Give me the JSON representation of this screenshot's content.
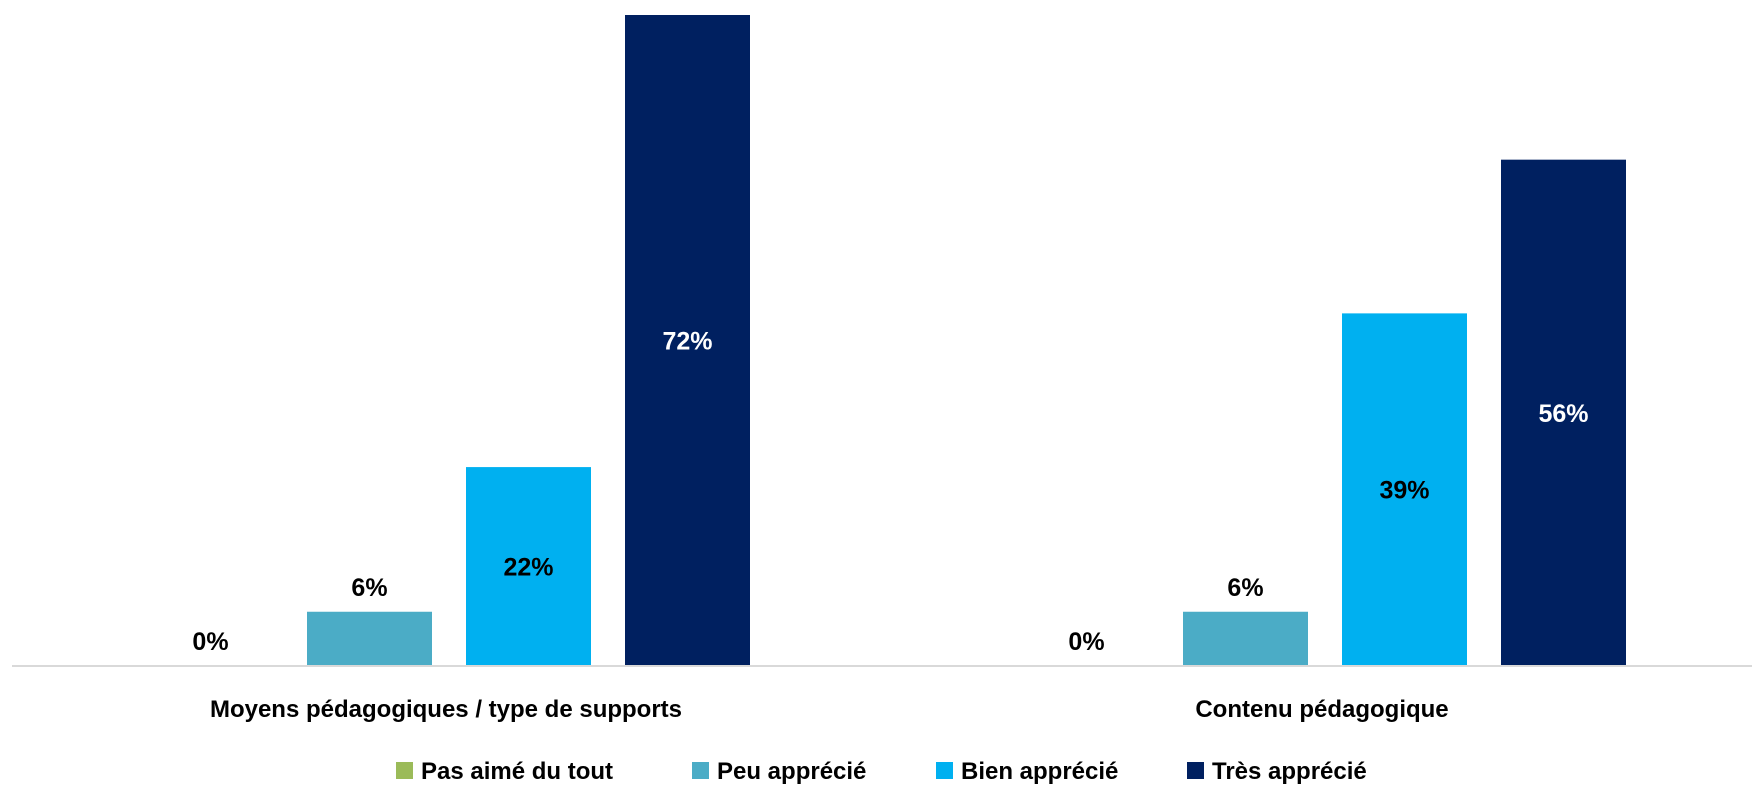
{
  "chart_data": {
    "type": "bar",
    "title": "",
    "xlabel": "",
    "ylabel": "",
    "ylim": [
      0,
      72
    ],
    "grid": false,
    "legend_position": "bottom",
    "categories": [
      "Moyens pédagogiques / type de supports",
      "Contenu pédagogique"
    ],
    "series": [
      {
        "name": "Pas aimé du tout",
        "color": "#9BBB59",
        "values": [
          0,
          0
        ],
        "labels": [
          "0%",
          "0%"
        ]
      },
      {
        "name": "Peu apprécié",
        "color": "#4BACC6",
        "values": [
          6,
          6
        ],
        "labels": [
          "6%",
          "6%"
        ]
      },
      {
        "name": "Bien apprécié",
        "color": "#00B0F0",
        "values": [
          22,
          39
        ],
        "labels": [
          "22%",
          "39%"
        ]
      },
      {
        "name": "Très apprécié",
        "color": "#002060",
        "values": [
          72,
          56
        ],
        "labels": [
          "72%",
          "56%"
        ]
      }
    ]
  }
}
